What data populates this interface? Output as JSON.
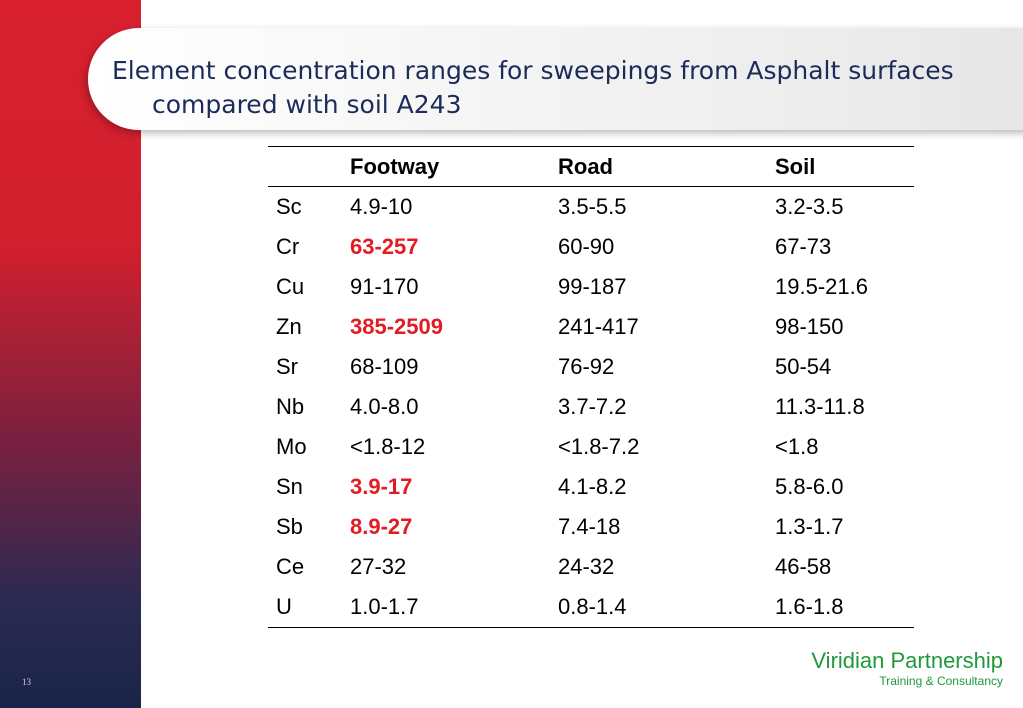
{
  "slide": {
    "title": "Element concentration ranges for sweepings from Asphalt surfaces compared with soil A243",
    "page_number": "13"
  },
  "table": {
    "headers": [
      "",
      "Footway",
      "Road",
      "Soil"
    ],
    "rows": [
      {
        "element": "Sc",
        "footway": "4.9-10",
        "road": "3.5-5.5",
        "soil": "3.2-3.5",
        "highlight": false
      },
      {
        "element": "Cr",
        "footway": "63-257",
        "road": "60-90",
        "soil": "67-73",
        "highlight": true
      },
      {
        "element": "Cu",
        "footway": "91-170",
        "road": "99-187",
        "soil": "19.5-21.6",
        "highlight": false
      },
      {
        "element": "Zn",
        "footway": "385-2509",
        "road": "241-417",
        "soil": "98-150",
        "highlight": true
      },
      {
        "element": "Sr",
        "footway": "68-109",
        "road": "76-92",
        "soil": "50-54",
        "highlight": false
      },
      {
        "element": "Nb",
        "footway": "4.0-8.0",
        "road": "3.7-7.2",
        "soil": "11.3-11.8",
        "highlight": false
      },
      {
        "element": "Mo",
        "footway": "<1.8-12",
        "road": "<1.8-7.2",
        "soil": "<1.8",
        "highlight": false
      },
      {
        "element": "Sn",
        "footway": "3.9-17",
        "road": "4.1-8.2",
        "soil": "5.8-6.0",
        "highlight": true
      },
      {
        "element": "Sb",
        "footway": "8.9-27",
        "road": "7.4-18",
        "soil": "1.3-1.7",
        "highlight": true
      },
      {
        "element": "Ce",
        "footway": "27-32",
        "road": "24-32",
        "soil": "46-58",
        "highlight": false
      },
      {
        "element": "U",
        "footway": "1.0-1.7",
        "road": "0.8-1.4",
        "soil": "1.6-1.8",
        "highlight": false
      }
    ]
  },
  "branding": {
    "name": "Viridian Partnership",
    "tagline": "Training & Consultancy"
  },
  "colors": {
    "left_bar_red": "#d8202f",
    "left_bar_navy": "#1a2448",
    "title_text": "#1c2b5a",
    "highlight_red": "#e31b23",
    "brand_green": "#1e9a3c"
  }
}
